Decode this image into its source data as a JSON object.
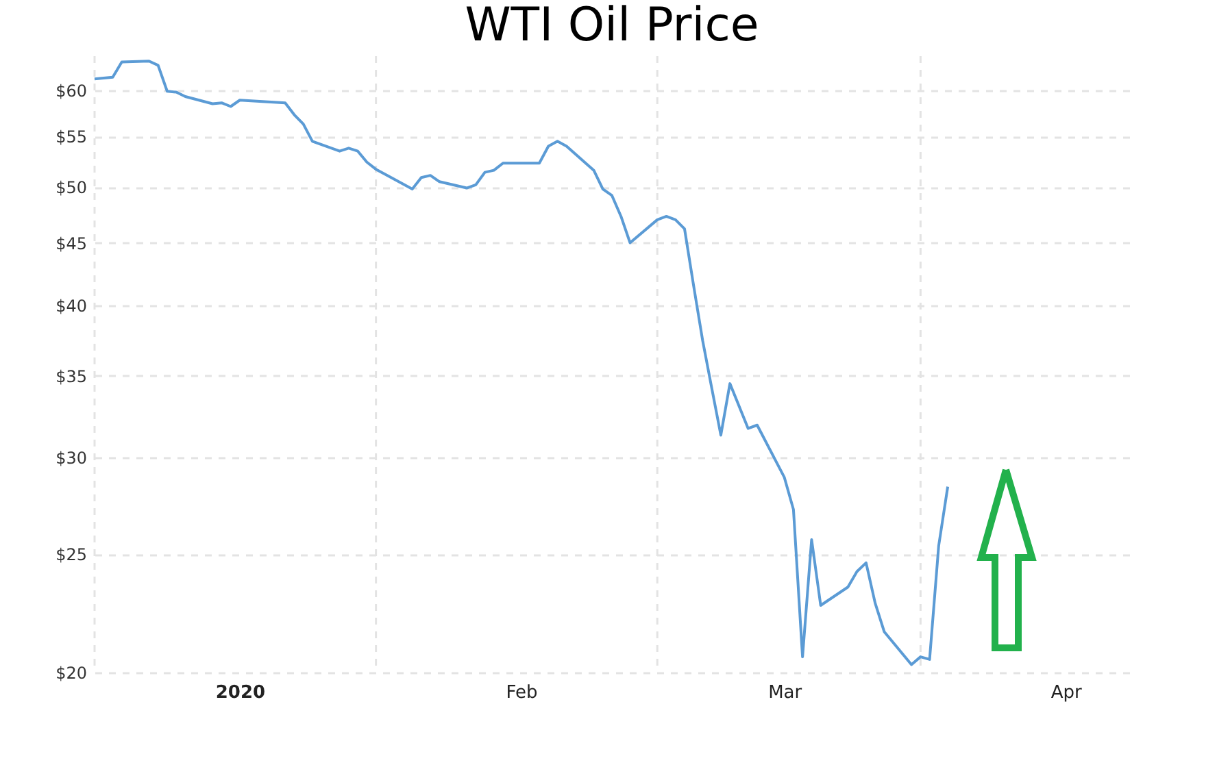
{
  "chart_data": {
    "type": "line",
    "title": "WTI Oil Price",
    "x": [
      "2019-12-16",
      "2019-12-18",
      "2019-12-19",
      "2019-12-22",
      "2019-12-23",
      "2019-12-24",
      "2019-12-25",
      "2019-12-26",
      "2019-12-29",
      "2019-12-30",
      "2019-12-31",
      "2020-01-01",
      "2020-01-06",
      "2020-01-07",
      "2020-01-08",
      "2020-01-09",
      "2020-01-12",
      "2020-01-13",
      "2020-01-14",
      "2020-01-15",
      "2020-01-16",
      "2020-01-20",
      "2020-01-21",
      "2020-01-22",
      "2020-01-23",
      "2020-01-26",
      "2020-01-27",
      "2020-01-28",
      "2020-01-29",
      "2020-01-30",
      "2020-02-03",
      "2020-02-04",
      "2020-02-05",
      "2020-02-06",
      "2020-02-09",
      "2020-02-10",
      "2020-02-11",
      "2020-02-12",
      "2020-02-13",
      "2020-02-16",
      "2020-02-17",
      "2020-02-18",
      "2020-02-19",
      "2020-02-20",
      "2020-02-21",
      "2020-02-22",
      "2020-02-23",
      "2020-02-24",
      "2020-02-26",
      "2020-02-27",
      "2020-03-01",
      "2020-03-02",
      "2020-03-03",
      "2020-03-04",
      "2020-03-05",
      "2020-03-08",
      "2020-03-09",
      "2020-03-10",
      "2020-03-11",
      "2020-03-12",
      "2020-03-15",
      "2020-03-16",
      "2020-03-17",
      "2020-03-18",
      "2020-03-19"
    ],
    "series": [
      {
        "color": "#5b9bd5",
        "values": [
          61.3,
          61.5,
          63.3,
          63.4,
          62.9,
          59.9,
          59.8,
          59.3,
          58.5,
          58.6,
          58.2,
          58.9,
          58.6,
          57.3,
          56.3,
          54.5,
          53.5,
          53.8,
          53.5,
          52.4,
          51.7,
          49.8,
          50.9,
          51.1,
          50.5,
          49.9,
          50.2,
          51.4,
          51.6,
          52.3,
          52.3,
          54.0,
          54.5,
          54.0,
          51.6,
          49.8,
          49.2,
          47.3,
          45.0,
          47.0,
          47.3,
          47.0,
          46.2,
          41.5,
          37.4,
          34.2,
          31.3,
          34.5,
          31.7,
          31.9,
          28.9,
          27.2,
          20.6,
          25.7,
          22.7,
          23.5,
          24.2,
          24.6,
          22.8,
          21.6,
          20.3,
          20.6,
          20.5,
          25.4,
          28.4
        ]
      }
    ],
    "xlim": [
      "2019-12-16",
      "2020-04-08"
    ],
    "xticks": [
      {
        "value": "2019-12-16",
        "label": null
      },
      {
        "value": "2020-01-01",
        "label": "2020"
      },
      {
        "value": "2020-01-16",
        "label": null
      },
      {
        "value": "2020-02-01",
        "label": "Feb"
      },
      {
        "value": "2020-02-16",
        "label": null
      },
      {
        "value": "2020-03-01",
        "label": "Mar"
      },
      {
        "value": "2020-03-16",
        "label": null
      },
      {
        "value": "2020-04-01",
        "label": "Apr"
      }
    ],
    "ylim": [
      20,
      64
    ],
    "yticks": [
      {
        "value": 20,
        "label": "$20"
      },
      {
        "value": 25,
        "label": "$25"
      },
      {
        "value": 30,
        "label": "$30"
      },
      {
        "value": 35,
        "label": "$35"
      },
      {
        "value": 40,
        "label": "$40"
      },
      {
        "value": 45,
        "label": "$45"
      },
      {
        "value": 50,
        "label": "$50"
      },
      {
        "value": 55,
        "label": "$55"
      },
      {
        "value": 60,
        "label": "$60"
      }
    ],
    "log": true,
    "grid": true,
    "marker": "none",
    "line_style": "solid"
  }
}
